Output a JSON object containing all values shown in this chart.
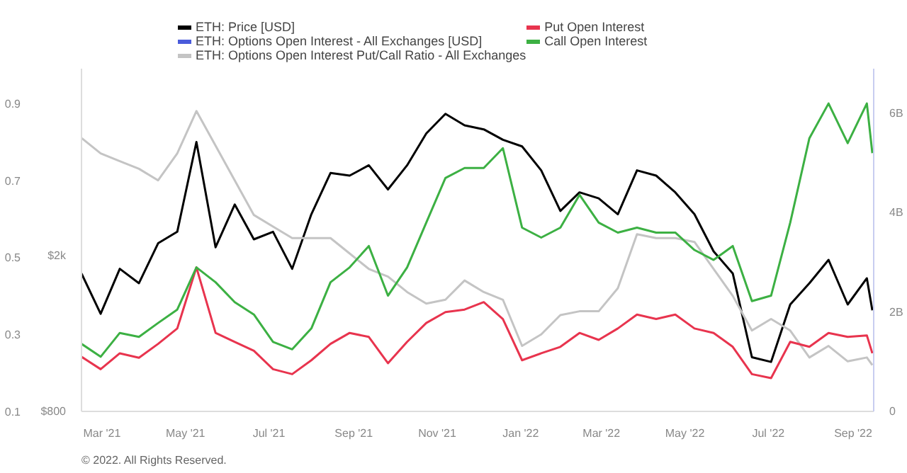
{
  "chart_data": {
    "type": "line",
    "x": [
      "2021-02-14",
      "2021-02-28",
      "2021-03-14",
      "2021-03-28",
      "2021-04-11",
      "2021-04-25",
      "2021-05-09",
      "2021-05-23",
      "2021-06-06",
      "2021-06-20",
      "2021-07-04",
      "2021-07-18",
      "2021-08-01",
      "2021-08-15",
      "2021-08-29",
      "2021-09-12",
      "2021-09-26",
      "2021-10-10",
      "2021-10-24",
      "2021-11-07",
      "2021-11-21",
      "2021-12-05",
      "2021-12-19",
      "2022-01-02",
      "2022-01-16",
      "2022-01-30",
      "2022-02-13",
      "2022-02-27",
      "2022-03-13",
      "2022-03-27",
      "2022-04-10",
      "2022-04-24",
      "2022-05-08",
      "2022-05-22",
      "2022-06-05",
      "2022-06-19",
      "2022-07-03",
      "2022-07-17",
      "2022-07-31",
      "2022-08-14",
      "2022-08-28",
      "2022-09-11",
      "2022-09-15"
    ],
    "series": [
      {
        "name": "ETH: Price [USD]",
        "color": "#000000",
        "axis": "y",
        "values": [
          1800,
          1420,
          1850,
          1700,
          2150,
          2300,
          3900,
          2100,
          2700,
          2200,
          2300,
          1850,
          2550,
          3250,
          3200,
          3400,
          2950,
          3400,
          4100,
          4600,
          4300,
          4200,
          3950,
          3800,
          3300,
          2600,
          2900,
          2800,
          2550,
          3300,
          3200,
          2900,
          2550,
          2050,
          1800,
          1100,
          1070,
          1500,
          1700,
          1950,
          1500,
          1750,
          1450
        ]
      },
      {
        "name": "ETH: Options Open Interest - All Exchanges [USD]",
        "color": "#4a5bdb",
        "axis": "y3",
        "values": [
          null,
          null,
          null,
          null,
          null,
          null,
          null,
          null,
          null,
          null,
          null,
          null,
          null,
          null,
          null,
          null,
          null,
          null,
          null,
          null,
          null,
          null,
          null,
          null,
          null,
          null,
          null,
          null,
          null,
          null,
          null,
          null,
          null,
          null,
          null,
          null,
          null,
          null,
          null,
          null,
          null,
          null,
          null
        ]
      },
      {
        "name": "ETH: Options Open Interest Put/Call Ratio - All Exchanges",
        "color": "#c4c4c4",
        "axis": "y2",
        "values": [
          0.81,
          0.77,
          0.75,
          0.73,
          0.7,
          0.77,
          0.88,
          0.79,
          0.7,
          0.61,
          0.58,
          0.55,
          0.55,
          0.55,
          0.51,
          0.47,
          0.45,
          0.41,
          0.38,
          0.39,
          0.44,
          0.41,
          0.39,
          0.27,
          0.3,
          0.35,
          0.36,
          0.36,
          0.42,
          0.56,
          0.55,
          0.55,
          0.54,
          0.47,
          0.4,
          0.31,
          0.34,
          0.31,
          0.24,
          0.27,
          0.23,
          0.24,
          0.22
        ]
      },
      {
        "name": "Put Open Interest",
        "color": "#e8344e",
        "axis": "y3",
        "values": [
          1.1,
          0.85,
          1.17,
          1.08,
          1.36,
          1.67,
          2.9,
          1.58,
          1.4,
          1.22,
          0.85,
          0.75,
          1.03,
          1.36,
          1.58,
          1.5,
          0.97,
          1.4,
          1.78,
          2.0,
          2.05,
          2.2,
          1.86,
          1.03,
          1.17,
          1.3,
          1.58,
          1.44,
          1.67,
          1.95,
          1.86,
          1.95,
          1.67,
          1.58,
          1.3,
          0.75,
          0.67,
          1.4,
          1.3,
          1.58,
          1.5,
          1.53,
          1.17
        ]
      },
      {
        "name": "Call Open Interest",
        "color": "#3cb043",
        "axis": "y3",
        "values": [
          1.36,
          1.1,
          1.58,
          1.5,
          1.78,
          2.05,
          2.9,
          2.6,
          2.2,
          1.95,
          1.4,
          1.25,
          1.67,
          2.6,
          2.9,
          3.33,
          2.33,
          2.9,
          3.8,
          4.7,
          4.9,
          4.9,
          5.3,
          3.7,
          3.5,
          3.7,
          4.36,
          3.8,
          3.6,
          3.7,
          3.6,
          3.6,
          3.25,
          3.05,
          3.33,
          2.22,
          2.33,
          3.8,
          5.5,
          6.2,
          5.4,
          6.2,
          5.2
        ]
      }
    ],
    "xlim": [
      "2021-02-14",
      "2022-09-16"
    ],
    "xticks": [
      {
        "value": "2021-03-01",
        "label": "Mar '21"
      },
      {
        "value": "2021-05-01",
        "label": "May '21"
      },
      {
        "value": "2021-07-01",
        "label": "Jul '21"
      },
      {
        "value": "2021-09-01",
        "label": "Sep '21"
      },
      {
        "value": "2021-11-01",
        "label": "Nov '21"
      },
      {
        "value": "2022-01-01",
        "label": "Jan '22"
      },
      {
        "value": "2022-03-01",
        "label": "Mar '22"
      },
      {
        "value": "2022-05-01",
        "label": "May '22"
      },
      {
        "value": "2022-07-01",
        "label": "Jul '22"
      },
      {
        "value": "2022-09-01",
        "label": "Sep '22"
      }
    ],
    "log": "y",
    "ylim": [
      800,
      6000
    ],
    "yticks": [
      {
        "value": 800,
        "label": "$800"
      },
      {
        "value": 2000,
        "label": "$2k"
      }
    ],
    "y2lim": [
      0.1,
      0.99
    ],
    "y2ticks": [
      0.1,
      0.3,
      0.5,
      0.7,
      0.9
    ],
    "y3lim": [
      0,
      6.9
    ],
    "y3ticks": [
      0,
      {
        "value": 2,
        "label": "2B"
      },
      {
        "value": 4,
        "label": "4B"
      },
      {
        "value": 6,
        "label": "6B"
      }
    ],
    "legend": "top",
    "annotations": [
      "© 2022. All Rights Reserved."
    ]
  }
}
